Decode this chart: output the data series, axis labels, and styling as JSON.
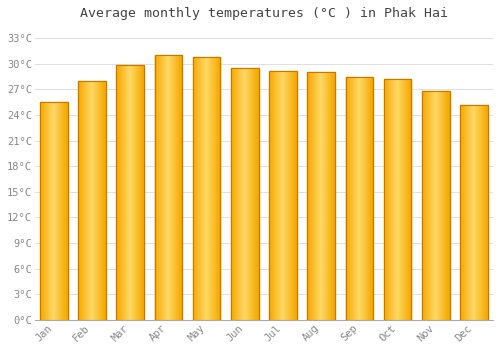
{
  "title": "Average monthly temperatures (°C ) in Phak Hai",
  "months": [
    "Jan",
    "Feb",
    "Mar",
    "Apr",
    "May",
    "Jun",
    "Jul",
    "Aug",
    "Sep",
    "Oct",
    "Nov",
    "Dec"
  ],
  "values": [
    25.5,
    28.0,
    29.8,
    31.0,
    30.8,
    29.5,
    29.2,
    29.0,
    28.5,
    28.2,
    26.8,
    25.2
  ],
  "bar_color_center": "#FFD966",
  "bar_color_edge": "#F5A800",
  "bar_outline_color": "#C87800",
  "background_color": "#FFFFFF",
  "grid_color": "#E0E0E0",
  "ytick_values": [
    0,
    3,
    6,
    9,
    12,
    15,
    18,
    21,
    24,
    27,
    30,
    33
  ],
  "ylim": [
    0,
    34.5
  ],
  "title_fontsize": 9.5,
  "tick_fontsize": 7.5,
  "font_family": "monospace",
  "tick_color": "#888888",
  "spine_color": "#AAAAAA"
}
